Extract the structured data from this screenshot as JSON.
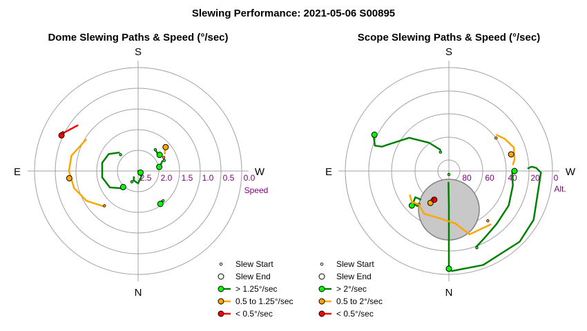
{
  "title": "Slewing Performance: 2021-05-06 S00895",
  "colors": {
    "fast": "#008000",
    "fast_fill": "#00ff00",
    "mid": "#ffa500",
    "slow": "#ff0000",
    "grid": "#a0a0a0",
    "ticks": "#800080",
    "obstruction": "#c8c8c8"
  },
  "chart_data": [
    {
      "type": "polar-path",
      "title": "Dome Slewing Paths & Speed (°/sec)",
      "compass": {
        "top": "S",
        "bottom": "N",
        "left": "E",
        "right": "W"
      },
      "radial_axis": {
        "label": "Speed",
        "ticks": [
          "2.5",
          "2.0",
          "1.5",
          "1.0",
          "0.5",
          "0.0"
        ]
      },
      "legend": [
        {
          "label": "Slew Start",
          "kind": "start"
        },
        {
          "label": "Slew End",
          "kind": "end"
        },
        {
          "label": "> 1.25°/sec",
          "kind": "fast"
        },
        {
          "label": "0.5 to 1.25°/sec",
          "kind": "mid"
        },
        {
          "label": "< 0.5°/sec",
          "kind": "slow"
        }
      ],
      "series": [
        {
          "speed": "fast",
          "points": [
            [
              225,
              1.91
            ],
            [
              240,
              1.71
            ],
            [
              260,
              1.62
            ],
            [
              283,
              1.61
            ],
            [
              300,
              1.68
            ],
            [
              314,
              1.86
            ]
          ],
          "start": [
            313,
            1.92
          ],
          "end": [
            223,
            1.97
          ]
        },
        {
          "speed": "fast",
          "points": [
            [
              120,
              2.5
            ],
            [
              148,
              2.35
            ],
            [
              180,
              2.2
            ],
            [
              205,
              2.25
            ],
            [
              215,
              2.32
            ]
          ],
          "start": [
            210,
            2.2
          ],
          "end": [
            123,
            2.43
          ]
        },
        {
          "speed": "fast",
          "points": [
            [
              78,
              1.96
            ],
            [
              68,
              1.87
            ]
          ],
          "start": [
            68,
            1.82
          ],
          "end": [
            79,
            1.98
          ]
        },
        {
          "speed": "fast",
          "points": [
            [
              51,
              1.87
            ],
            [
              41,
              1.85
            ]
          ],
          "start": [
            39,
            1.84
          ],
          "end": [
            53,
            1.85
          ]
        },
        {
          "speed": "fast",
          "points": [
            [
              140,
              1.57
            ],
            [
              148,
              1.58
            ]
          ],
          "start": [
            140,
            1.56
          ],
          "end": [
            146,
            1.54
          ]
        },
        {
          "speed": "mid",
          "points": [
            [
              57,
              1.73
            ],
            [
              49,
              1.64
            ]
          ],
          "start": [
            62,
            1.8
          ],
          "end": [
            49,
            1.62
          ]
        },
        {
          "speed": "mid",
          "points": [
            [
              301,
              1.03
            ],
            [
              283,
              0.85
            ],
            [
              270,
              0.83
            ],
            [
              255,
              0.9
            ],
            [
              240,
              1.06
            ],
            [
              225,
              1.3
            ]
          ],
          "start": [
            224,
            1.33
          ],
          "end": [
            264,
            0.83
          ]
        },
        {
          "speed": "slow",
          "points": [
            [
              307,
              0.67
            ],
            [
              298,
              0.5
            ],
            [
              295,
              0.45
            ]
          ],
          "start": [
            297,
            0.46
          ],
          "end": [
            295,
            0.46
          ]
        }
      ]
    },
    {
      "type": "polar-path",
      "title": "Scope Slewing Paths & Speed (°/sec)",
      "compass": {
        "top": "S",
        "bottom": "N",
        "left": "E",
        "right": "W"
      },
      "radial_axis": {
        "label": "Alt.",
        "ticks": [
          "80",
          "60",
          "40",
          "20",
          "0"
        ]
      },
      "legend": [
        {
          "label": "Slew Start",
          "kind": "start"
        },
        {
          "label": "Slew End",
          "kind": "end"
        },
        {
          "label": "> 2°/sec",
          "kind": "fast"
        },
        {
          "label": "0.5 to 2°/sec",
          "kind": "mid"
        },
        {
          "label": "< 0.5°/sec",
          "kind": "slow"
        }
      ],
      "series": [
        {
          "speed": "fast",
          "points": [
            [
              88,
              21
            ],
            [
              87,
              18
            ],
            [
              88,
              14
            ],
            [
              91,
              10
            ],
            [
              120,
              5
            ],
            [
              135,
              3
            ],
            [
              160,
              3
            ],
            [
              178,
              3
            ],
            [
              180,
              4
            ],
            [
              180,
              60
            ],
            [
              182,
              80
            ]
          ],
          "start": [
            179,
            87
          ],
          "end": [
            180,
            5
          ]
        },
        {
          "speed": "fast",
          "points": [
            [
              90,
              35
            ],
            [
              103,
              33
            ],
            [
              120,
              30
            ],
            [
              138,
              28
            ],
            [
              152,
              24
            ],
            [
              160,
              20
            ]
          ],
          "start": [
            160,
            19
          ],
          "end": [
            90,
            33
          ]
        },
        {
          "speed": "fast",
          "points": [
            [
              222,
              49
            ],
            [
              228,
              48
            ],
            [
              232,
              53
            ],
            [
              225,
              55
            ]
          ],
          "start": [
            222,
            51
          ],
          "end": [
            227,
            46
          ]
        },
        {
          "speed": "fast",
          "points": [
            [
              338,
              70
            ],
            [
              325,
              60
            ],
            [
              310,
              45
            ],
            [
              296,
              35
            ],
            [
              290,
              28
            ],
            [
              289,
              22
            ],
            [
              295,
              18
            ]
          ],
          "start": [
            336,
            72
          ],
          "end": [
            296,
            18
          ]
        },
        {
          "speed": "mid",
          "points": [
            [
              142,
              31
            ],
            [
              162,
              32
            ],
            [
              173,
              44
            ],
            [
              190,
              48
            ],
            [
              210,
              47
            ],
            [
              222,
              51
            ],
            [
              230,
              48
            ],
            [
              238,
              50
            ]
          ],
          "start": [
            142,
            35
          ],
          "end": [
            210,
            58
          ]
        },
        {
          "speed": "mid",
          "points": [
            [
              84,
              34
            ],
            [
              80,
              32
            ],
            [
              70,
              30
            ],
            [
              60,
              34
            ],
            [
              53,
              38
            ]
          ],
          "start": [
            55,
            40
          ],
          "end": [
            75,
            34
          ]
        },
        {
          "speed": "slow",
          "points": [
            [
              208,
              61
            ],
            [
              207,
              62
            ]
          ],
          "start": [
            210,
            61
          ],
          "end": [
            207,
            62
          ]
        }
      ]
    }
  ]
}
